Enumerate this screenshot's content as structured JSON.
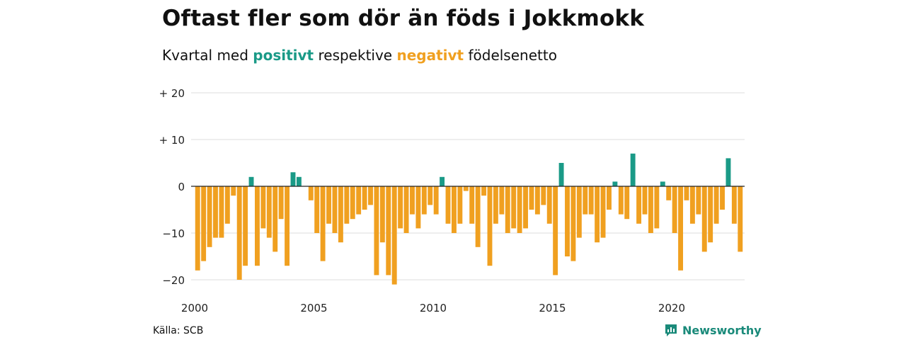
{
  "header": {
    "title": "Oftast fler som dör än föds i Jokkmokk",
    "subtitle_prefix": "Kvartal med ",
    "subtitle_positive": "positivt",
    "subtitle_middle": " respektive ",
    "subtitle_negative": "negativt",
    "subtitle_suffix": " födelsenetto"
  },
  "footer": {
    "source": "Källa: SCB",
    "brand": "Newsworthy",
    "brand_icon": "chart-logo-icon"
  },
  "colors": {
    "positive": "#1a9a87",
    "negative": "#f0a020",
    "grid": "#dddddd",
    "axis": "#222222"
  },
  "chart_data": {
    "type": "bar",
    "title": "Oftast fler som dör än föds i Jokkmokk",
    "subtitle": "Kvartal med positivt respektive negativt födelsenetto",
    "x_start_year": 2000,
    "xtick_labels": [
      "2000",
      "2005",
      "2010",
      "2015",
      "2020"
    ],
    "ytick_values": [
      20,
      10,
      0,
      -10,
      -20
    ],
    "ytick_labels": [
      "+ 20",
      "+ 10",
      "0",
      "−10",
      "−20"
    ],
    "ylim": [
      -21,
      20
    ],
    "grid": true,
    "values": [
      -18,
      -16,
      -13,
      -11,
      -11,
      -8,
      -2,
      -20,
      -17,
      2,
      -17,
      -9,
      -11,
      -14,
      -7,
      -17,
      3,
      2,
      0,
      -3,
      -10,
      -16,
      -8,
      -10,
      -12,
      -8,
      -7,
      -6,
      -5,
      -4,
      -19,
      -12,
      -19,
      -21,
      -9,
      -10,
      -6,
      -9,
      -6,
      -4,
      -6,
      2,
      -8,
      -10,
      -8,
      -1,
      -8,
      -13,
      -2,
      -17,
      -8,
      -6,
      -10,
      -9,
      -10,
      -9,
      -5,
      -6,
      -4,
      -8,
      -19,
      5,
      -15,
      -16,
      -11,
      -6,
      -6,
      -12,
      -11,
      -5,
      1,
      -6,
      -7,
      7,
      -8,
      -6,
      -10,
      -9,
      1,
      -3,
      -10,
      -18,
      -3,
      -8,
      -6,
      -14,
      -12,
      -8,
      -5,
      6,
      -8,
      -14
    ]
  }
}
